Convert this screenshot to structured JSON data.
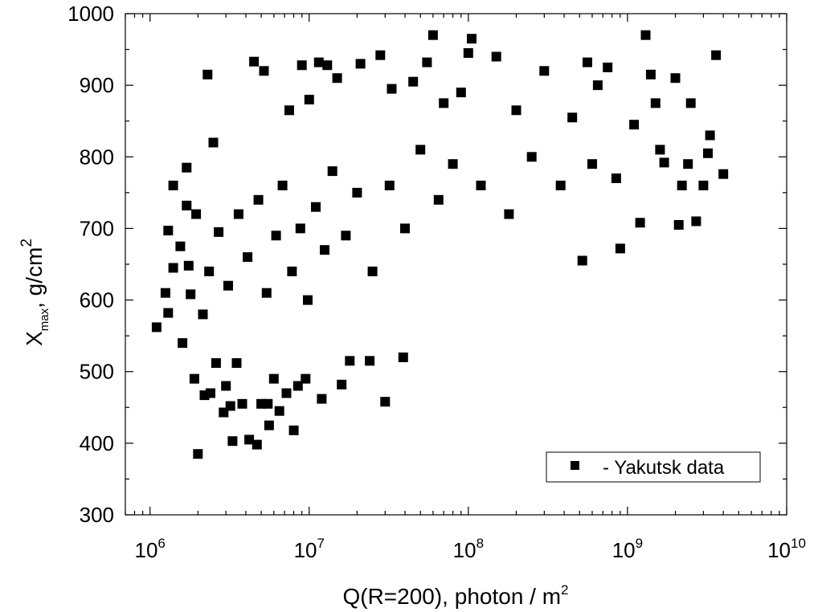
{
  "chart_data": {
    "type": "scatter",
    "title": "",
    "x_scale": "log",
    "xlim": [
      700000,
      10000000000
    ],
    "ylim": [
      300,
      1000
    ],
    "x_ticks": [
      {
        "value": 1000000,
        "base": "10",
        "exp": "6"
      },
      {
        "value": 10000000,
        "base": "10",
        "exp": "7"
      },
      {
        "value": 100000000,
        "base": "10",
        "exp": "8"
      },
      {
        "value": 1000000000,
        "base": "10",
        "exp": "9"
      },
      {
        "value": 10000000000,
        "base": "10",
        "exp": "10"
      }
    ],
    "y_ticks": [
      {
        "value": 300,
        "label": "300"
      },
      {
        "value": 400,
        "label": "400"
      },
      {
        "value": 500,
        "label": "500"
      },
      {
        "value": 600,
        "label": "600"
      },
      {
        "value": 700,
        "label": "700"
      },
      {
        "value": 800,
        "label": "800"
      },
      {
        "value": 900,
        "label": "900"
      },
      {
        "value": 1000,
        "label": "1000"
      }
    ],
    "xlabel": {
      "main": "Q(R=200),  photon / m",
      "sup": "2"
    },
    "ylabel": {
      "main": "X",
      "sub": "max",
      "middle": ",    g/cm",
      "sup": "2"
    },
    "legend": {
      "position": "bottom-right",
      "label": "- Yakutsk data"
    },
    "series": [
      {
        "name": "Yakutsk data",
        "marker": "square",
        "color": "#000000",
        "points": [
          [
            1100000,
            562
          ],
          [
            1300000,
            582
          ],
          [
            1300000,
            697
          ],
          [
            1400000,
            760
          ],
          [
            1400000,
            645
          ],
          [
            1600000,
            540
          ],
          [
            1700000,
            785
          ],
          [
            1700000,
            732
          ],
          [
            1800000,
            608
          ],
          [
            1900000,
            490
          ],
          [
            2000000,
            385
          ],
          [
            2200000,
            467
          ],
          [
            2300000,
            915
          ],
          [
            2400000,
            470
          ],
          [
            2500000,
            820
          ],
          [
            2600000,
            512
          ],
          [
            2900000,
            443
          ],
          [
            3000000,
            480
          ],
          [
            3200000,
            452
          ],
          [
            3300000,
            403
          ],
          [
            3500000,
            512
          ],
          [
            3800000,
            455
          ],
          [
            4200000,
            405
          ],
          [
            4500000,
            933
          ],
          [
            4700000,
            398
          ],
          [
            5000000,
            455
          ],
          [
            5200000,
            920
          ],
          [
            5500000,
            455
          ],
          [
            5600000,
            425
          ],
          [
            6000000,
            490
          ],
          [
            6500000,
            445
          ],
          [
            7200000,
            470
          ],
          [
            7500000,
            865
          ],
          [
            8000000,
            418
          ],
          [
            8500000,
            480
          ],
          [
            9000000,
            928
          ],
          [
            9500000,
            490
          ],
          [
            10000000,
            880
          ],
          [
            11500000,
            932
          ],
          [
            12000000,
            462
          ],
          [
            13000000,
            928
          ],
          [
            15000000,
            910
          ],
          [
            16000000,
            482
          ],
          [
            18000000,
            515
          ],
          [
            21000000,
            930
          ],
          [
            24000000,
            515
          ],
          [
            28000000,
            942
          ],
          [
            30000000,
            458
          ],
          [
            33000000,
            895
          ],
          [
            39000000,
            520
          ],
          [
            45000000,
            905
          ],
          [
            55000000,
            932
          ],
          [
            60000000,
            970
          ],
          [
            70000000,
            875
          ],
          [
            90000000,
            890
          ],
          [
            100000000,
            945
          ],
          [
            105000000,
            965
          ],
          [
            150000000,
            940
          ],
          [
            200000000,
            865
          ],
          [
            300000000,
            920
          ],
          [
            450000000,
            855
          ],
          [
            520000000,
            655
          ],
          [
            560000000,
            932
          ],
          [
            650000000,
            900
          ],
          [
            750000000,
            925
          ],
          [
            900000000,
            672
          ],
          [
            1100000000,
            845
          ],
          [
            1300000000,
            970
          ],
          [
            1400000000,
            915
          ],
          [
            1500000000,
            875
          ],
          [
            2000000000,
            910
          ],
          [
            2100000000,
            705
          ],
          [
            2500000000,
            875
          ],
          [
            2700000000,
            710
          ],
          [
            3000000000,
            760
          ],
          [
            3300000000,
            830
          ],
          [
            3600000000,
            942
          ],
          [
            4000000000,
            776
          ],
          [
            3200000000,
            805
          ],
          [
            1700000000,
            792
          ],
          [
            2200000000,
            760
          ],
          [
            1200000000,
            708
          ],
          [
            1250000,
            610
          ],
          [
            1550000,
            675
          ],
          [
            1750000,
            648
          ],
          [
            1950000,
            720
          ],
          [
            2150000,
            580
          ],
          [
            2350000,
            640
          ],
          [
            2700000,
            695
          ],
          [
            3100000,
            620
          ],
          [
            3600000,
            720
          ],
          [
            4100000,
            660
          ],
          [
            4800000,
            740
          ],
          [
            5400000,
            610
          ],
          [
            6200000,
            690
          ],
          [
            6800000,
            760
          ],
          [
            7800000,
            640
          ],
          [
            8800000,
            700
          ],
          [
            9800000,
            600
          ],
          [
            11000000,
            730
          ],
          [
            12500000,
            670
          ],
          [
            14000000,
            780
          ],
          [
            17000000,
            690
          ],
          [
            20000000,
            750
          ],
          [
            25000000,
            640
          ],
          [
            32000000,
            760
          ],
          [
            40000000,
            700
          ],
          [
            50000000,
            810
          ],
          [
            65000000,
            740
          ],
          [
            80000000,
            790
          ],
          [
            120000000,
            760
          ],
          [
            180000000,
            720
          ],
          [
            250000000,
            800
          ],
          [
            380000000,
            760
          ],
          [
            600000000,
            790
          ],
          [
            850000000,
            770
          ],
          [
            1600000000,
            810
          ],
          [
            2400000000,
            790
          ]
        ]
      }
    ]
  }
}
